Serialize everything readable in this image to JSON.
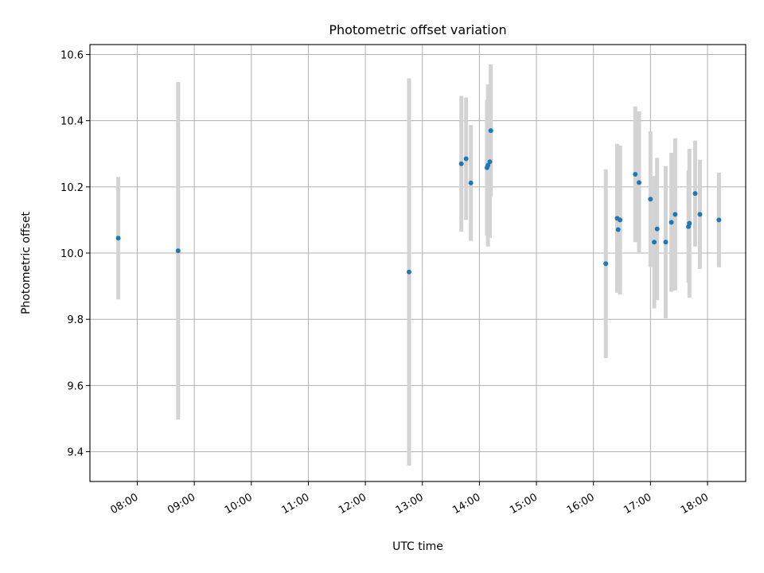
{
  "chart_data": {
    "type": "scatter",
    "title": "Photometric offset variation",
    "xlabel": "UTC time",
    "ylabel": "Photometric offset",
    "x_ticks": [
      "08:00",
      "09:00",
      "10:00",
      "11:00",
      "12:00",
      "13:00",
      "14:00",
      "15:00",
      "16:00",
      "17:00",
      "18:00"
    ],
    "x_tick_hours": [
      8,
      9,
      10,
      11,
      12,
      13,
      14,
      15,
      16,
      17,
      18
    ],
    "y_ticks": [
      9.4,
      9.6,
      9.8,
      10.0,
      10.2,
      10.4,
      10.6
    ],
    "xlim_hours": [
      7.17,
      18.67
    ],
    "ylim": [
      9.31,
      10.63
    ],
    "grid": true,
    "colors": {
      "point": "#1f77b4",
      "errorbar": "#d3d3d3",
      "grid": "#b0b0b0"
    },
    "points": [
      {
        "time": "07:40",
        "y": 10.045,
        "err": 0.185
      },
      {
        "time": "08:43",
        "y": 10.007,
        "err": 0.51
      },
      {
        "time": "12:46",
        "y": 9.943,
        "err": 0.585
      },
      {
        "time": "13:41",
        "y": 10.27,
        "err": 0.205
      },
      {
        "time": "13:46",
        "y": 10.285,
        "err": 0.185
      },
      {
        "time": "13:51",
        "y": 10.212,
        "err": 0.175
      },
      {
        "time": "14:08",
        "y": 10.258,
        "err": 0.205
      },
      {
        "time": "14:09",
        "y": 10.265,
        "err": 0.245
      },
      {
        "time": "14:11",
        "y": 10.276,
        "err": 0.23
      },
      {
        "time": "14:12",
        "y": 10.37,
        "err": 0.2
      },
      {
        "time": "16:13",
        "y": 9.968,
        "err": 0.285
      },
      {
        "time": "16:25",
        "y": 10.105,
        "err": 0.225
      },
      {
        "time": "16:26",
        "y": 10.071,
        "err": 0.185
      },
      {
        "time": "16:28",
        "y": 10.1,
        "err": 0.225
      },
      {
        "time": "16:44",
        "y": 10.238,
        "err": 0.205
      },
      {
        "time": "16:48",
        "y": 10.213,
        "err": 0.215
      },
      {
        "time": "17:00",
        "y": 10.163,
        "err": 0.205
      },
      {
        "time": "17:04",
        "y": 10.033,
        "err": 0.2
      },
      {
        "time": "17:07",
        "y": 10.073,
        "err": 0.215
      },
      {
        "time": "17:16",
        "y": 10.033,
        "err": 0.23
      },
      {
        "time": "17:22",
        "y": 10.093,
        "err": 0.21
      },
      {
        "time": "17:26",
        "y": 10.117,
        "err": 0.23
      },
      {
        "time": "17:40",
        "y": 10.08,
        "err": 0.17
      },
      {
        "time": "17:41",
        "y": 10.09,
        "err": 0.225
      },
      {
        "time": "17:47",
        "y": 10.18,
        "err": 0.16
      },
      {
        "time": "17:52",
        "y": 10.117,
        "err": 0.165
      },
      {
        "time": "18:12",
        "y": 10.1,
        "err": 0.143
      }
    ]
  }
}
